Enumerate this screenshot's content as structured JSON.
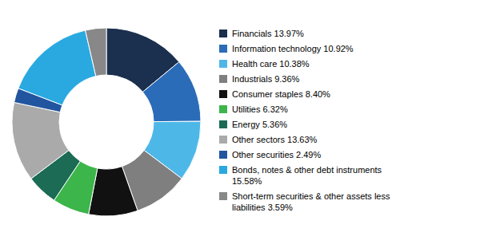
{
  "chart_data": {
    "type": "donut",
    "categories": [
      "Financials 13.97%",
      "Information technology 10.92%",
      "Health care 10.38%",
      "Industrials 9.36%",
      "Consumer staples 8.40%",
      "Utilities 6.32%",
      "Energy 5.36%",
      "Other sectors 13.63%",
      "Other securities 2.49%",
      "Bonds, notes & other debt instruments\n15.58%",
      "Short-term securities & other assets less\nliabilities 3.59%"
    ],
    "values": [
      13.97,
      10.92,
      10.38,
      9.36,
      8.4,
      6.32,
      5.36,
      13.63,
      2.49,
      15.58,
      3.59
    ],
    "colors": [
      "#1b2f4e",
      "#2b6cb8",
      "#4db8e8",
      "#7f7f7f",
      "#111111",
      "#3cb54a",
      "#1b6b55",
      "#aaaaaa",
      "#2255a0",
      "#29a9e0",
      "#888888"
    ],
    "legend": "right"
  }
}
